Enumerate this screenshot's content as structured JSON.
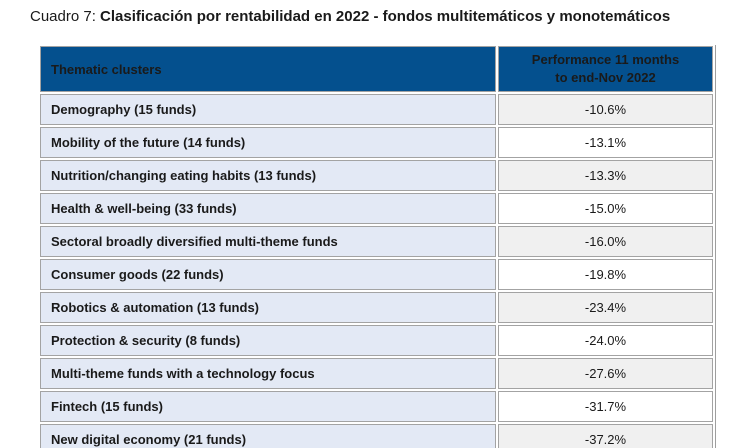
{
  "caption": {
    "prefix": "Cuadro 7: ",
    "main": "Clasificación por rentabilidad en 2022 - fondos multitemáticos y monotemáticos"
  },
  "table": {
    "header": {
      "cluster_label": "Thematic clusters",
      "performance_line1": "Performance 11 months",
      "performance_line2": "to end-Nov 2022"
    },
    "rows": [
      {
        "cluster": "Demography (15 funds)",
        "performance": "-10.6%"
      },
      {
        "cluster": "Mobility of the future (14 funds)",
        "performance": "-13.1%"
      },
      {
        "cluster": "Nutrition/changing eating habits (13 funds)",
        "performance": "-13.3%"
      },
      {
        "cluster": "Health & well-being (33 funds)",
        "performance": "-15.0%"
      },
      {
        "cluster": "Sectoral broadly diversified multi-theme funds",
        "performance": "-16.0%"
      },
      {
        "cluster": "Consumer goods (22 funds)",
        "performance": "-19.8%"
      },
      {
        "cluster": "Robotics & automation (13 funds)",
        "performance": "-23.4%"
      },
      {
        "cluster": "Protection & security (8 funds)",
        "performance": "-24.0%"
      },
      {
        "cluster": "Multi-theme funds with a technology focus",
        "performance": "-27.6%"
      },
      {
        "cluster": "Fintech (15 funds)",
        "performance": "-31.7%"
      },
      {
        "cluster": "New digital economy (21 funds)",
        "performance": "-37.2%"
      }
    ]
  },
  "colors": {
    "header_bg": "#04508e",
    "header_text": "#ffffff",
    "label_cell_bg": "#e3e9f5",
    "alt_value_cell_bg": "#f0f0f0",
    "cell_border": "#a3a3a3",
    "text": "#1a1a1a"
  }
}
